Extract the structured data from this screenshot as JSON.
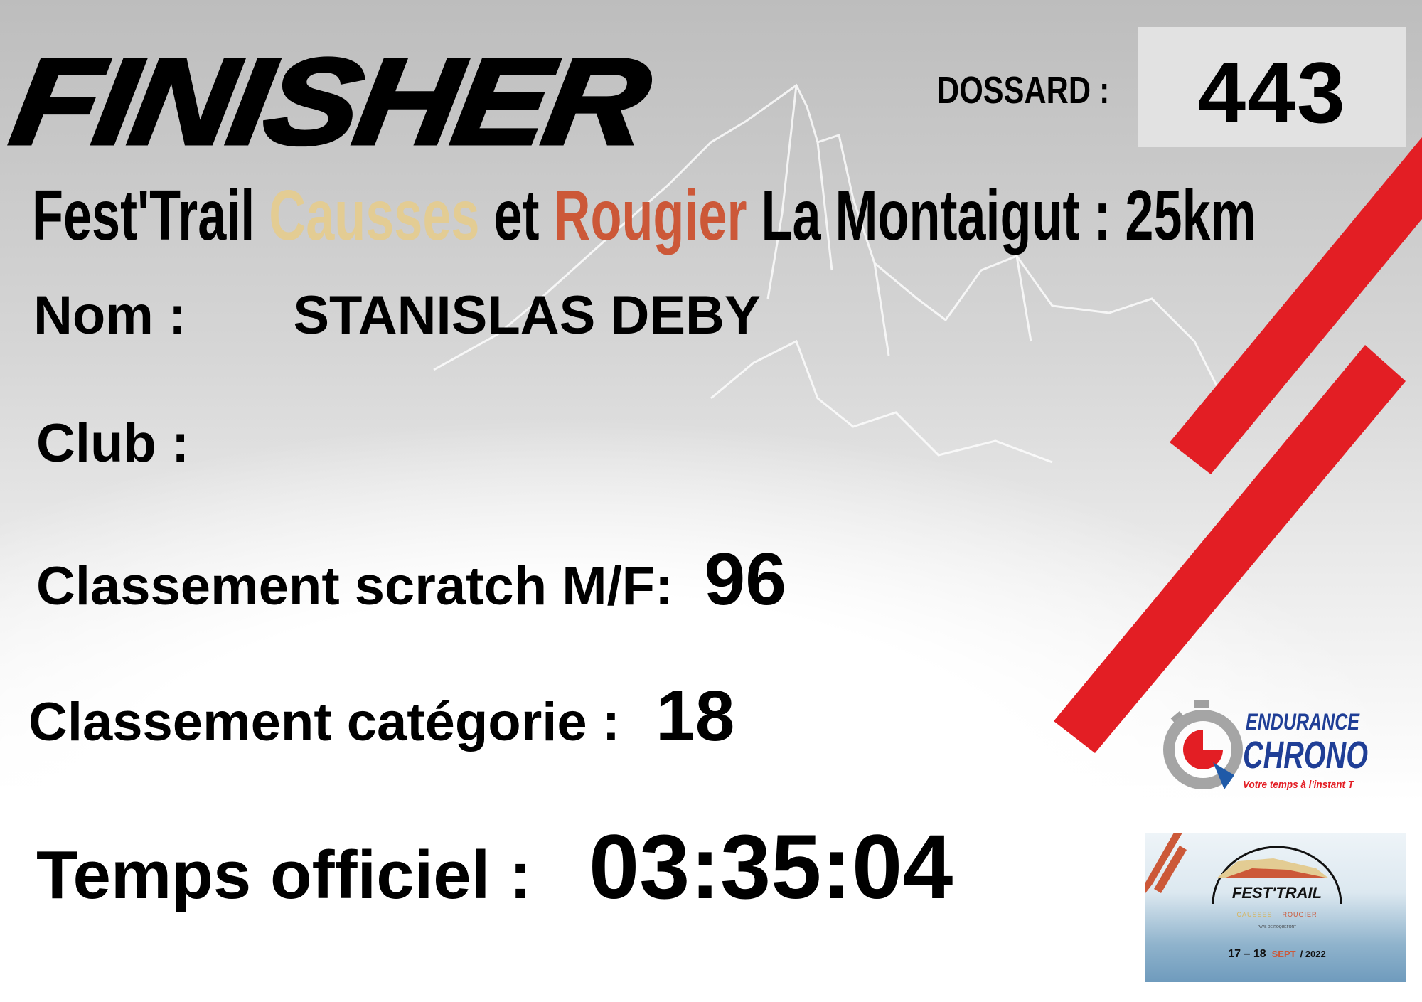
{
  "header": {
    "title": "FINISHER",
    "dossard_label": "DOSSARD :",
    "dossard_number": "443"
  },
  "event": {
    "part1": "Fest'Trail ",
    "part2": "Causses",
    "part3": " et ",
    "part4": "Rougier",
    "part5": " La Montaigut : 25km"
  },
  "fields": {
    "nom_label": "Nom :",
    "nom_value": "STANISLAS DEBY",
    "club_label": "Club :",
    "scratch_label": "Classement scratch M/F:",
    "scratch_value": "96",
    "categorie_label": "Classement catégorie :",
    "categorie_value": "18",
    "temps_label": "Temps officiel :",
    "temps_value": "03:35:04"
  },
  "logos": {
    "endurance_chrono": {
      "line1": "ENDURANCE",
      "line2": "CHRONO",
      "tagline": "Votre temps à l'instant T"
    },
    "fest_trail": {
      "name": "FEST'TRAIL",
      "causses": "CAUSSES",
      "rougier": "ROUGIER",
      "sub": "PAYS DE ROQUEFORT",
      "dates": "17 – 18",
      "month": "SEPT",
      "year": "/ 2022"
    }
  },
  "colors": {
    "red": "#e31e24",
    "causses": "#e3cc93",
    "rougier": "#cc5838",
    "chrono_blue": "#1f3e96"
  }
}
